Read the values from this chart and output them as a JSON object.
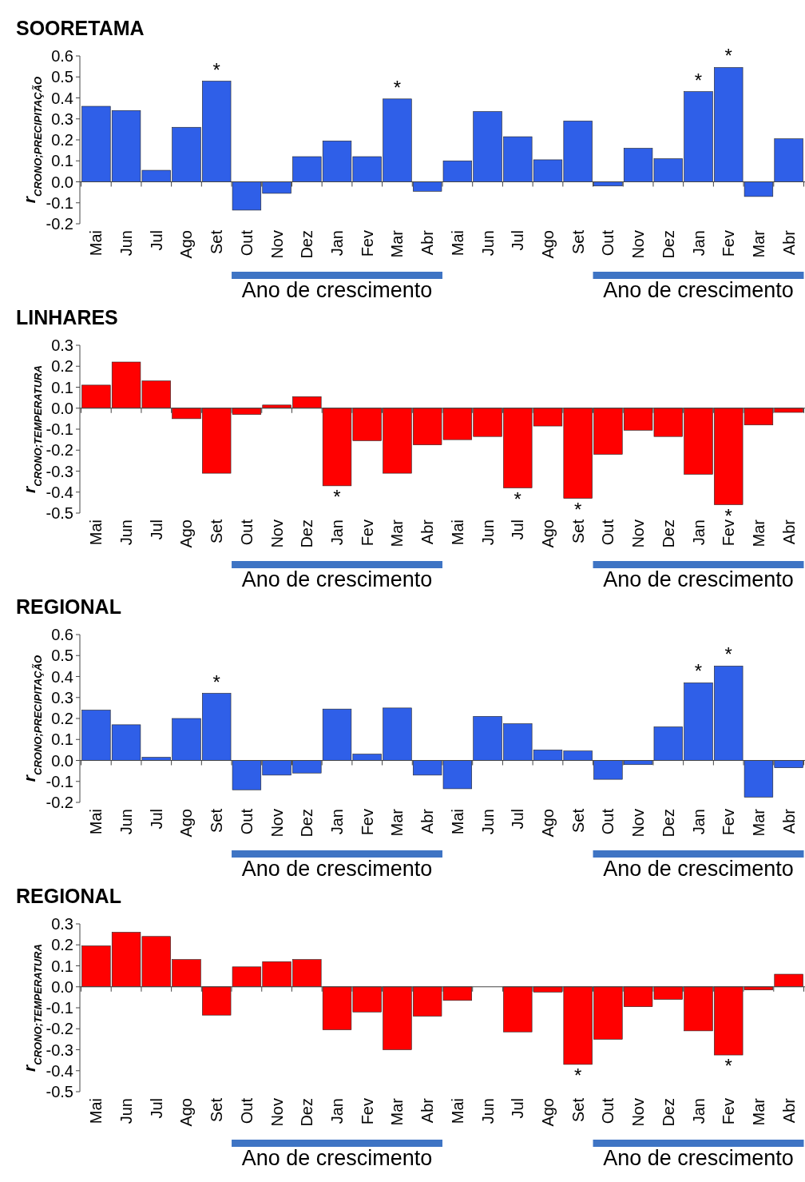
{
  "chart_data": [
    {
      "type": "bar",
      "title": "SOORETAMA",
      "ylabel": "r$_{CRONO;PRECIPITAÇÃO}$",
      "categories": [
        "Mai",
        "Jun",
        "Jul",
        "Ago",
        "Set",
        "Out",
        "Nov",
        "Dez",
        "Jan",
        "Fev",
        "Mar",
        "Abr",
        "Mai",
        "Jun",
        "Jul",
        "Ago",
        "Set",
        "Out",
        "Nov",
        "Dez",
        "Jan",
        "Fev",
        "Mar",
        "Abr"
      ],
      "color": "#2f5fe8",
      "values": [
        0.36,
        0.34,
        0.055,
        0.26,
        0.48,
        -0.135,
        -0.055,
        0.12,
        0.195,
        0.12,
        0.395,
        -0.045,
        0.1,
        0.335,
        0.215,
        0.105,
        0.29,
        -0.02,
        0.16,
        0.11,
        0.43,
        0.545,
        -0.07,
        0.205
      ],
      "value_labels": [
        null,
        null,
        null,
        null,
        "*",
        null,
        null,
        null,
        null,
        null,
        "*",
        null,
        null,
        null,
        null,
        null,
        null,
        null,
        null,
        null,
        "*",
        "*",
        null,
        null
      ],
      "ylim": [
        -0.2,
        0.6
      ],
      "yticks": [
        {
          "value": -0.2,
          "label": "-0.2"
        },
        {
          "value": -0.1,
          "label": "-0.1"
        },
        {
          "value": 0,
          "label": "0.0"
        },
        {
          "value": 0.1,
          "label": "0.1"
        },
        {
          "value": 0.2,
          "label": "0.2"
        },
        {
          "value": 0.3,
          "label": "0.3"
        },
        {
          "value": 0.4,
          "label": "0.4"
        },
        {
          "value": 0.5,
          "label": "0.5"
        },
        {
          "value": 0.6,
          "label": "0.6"
        }
      ],
      "annotations": [
        "Ano de crescimento",
        "Ano de crescimento"
      ]
    },
    {
      "type": "bar",
      "title": "LINHARES",
      "ylabel": "r$_{CRONO;TEMPERATURA}$",
      "categories": [
        "Mai",
        "Jun",
        "Jul",
        "Ago",
        "Set",
        "Out",
        "Nov",
        "Dez",
        "Jan",
        "Fev",
        "Mar",
        "Abr",
        "Mai",
        "Jun",
        "Jul",
        "Ago",
        "Set",
        "Out",
        "Nov",
        "Dez",
        "Jan",
        "Fev",
        "Mar",
        "Abr"
      ],
      "color": "#ff0000",
      "values": [
        0.11,
        0.22,
        0.13,
        -0.05,
        -0.31,
        -0.03,
        0.015,
        0.055,
        -0.37,
        -0.155,
        -0.31,
        -0.175,
        -0.15,
        -0.135,
        -0.38,
        -0.085,
        -0.43,
        -0.22,
        -0.105,
        -0.135,
        -0.315,
        -0.46,
        -0.08,
        -0.02
      ],
      "value_labels": [
        null,
        null,
        null,
        null,
        null,
        null,
        null,
        null,
        "*",
        null,
        null,
        null,
        null,
        null,
        "*",
        null,
        "*",
        null,
        null,
        null,
        null,
        "*",
        null,
        null
      ],
      "ylim": [
        -0.5,
        0.3
      ],
      "yticks": [
        {
          "value": -0.5,
          "label": "-0.5"
        },
        {
          "value": -0.4,
          "label": "-0.4"
        },
        {
          "value": -0.3,
          "label": "-0.3"
        },
        {
          "value": -0.2,
          "label": "-0.2"
        },
        {
          "value": -0.1,
          "label": "-0.1"
        },
        {
          "value": 0,
          "label": "0.0"
        },
        {
          "value": 0.1,
          "label": "0.1"
        },
        {
          "value": 0.2,
          "label": "0.2"
        },
        {
          "value": 0.3,
          "label": "0.3"
        }
      ],
      "annotations": [
        "Ano de crescimento",
        "Ano de crescimento"
      ]
    },
    {
      "type": "bar",
      "title": "REGIONAL",
      "ylabel": "r$_{CRONO;PRECIPITAÇÃO}$",
      "categories": [
        "Mai",
        "Jun",
        "Jul",
        "Ago",
        "Set",
        "Out",
        "Nov",
        "Dez",
        "Jan",
        "Fev",
        "Mar",
        "Abr",
        "Mai",
        "Jun",
        "Jul",
        "Ago",
        "Set",
        "Out",
        "Nov",
        "Dez",
        "Jan",
        "Fev",
        "Mar",
        "Abr"
      ],
      "color": "#2f5fe8",
      "values": [
        0.24,
        0.17,
        0.015,
        0.2,
        0.32,
        -0.14,
        -0.07,
        -0.06,
        0.245,
        0.03,
        0.25,
        -0.07,
        -0.135,
        0.21,
        0.175,
        0.05,
        0.045,
        -0.09,
        -0.02,
        0.16,
        0.37,
        0.45,
        -0.175,
        -0.035
      ],
      "value_labels": [
        null,
        null,
        null,
        null,
        "*",
        null,
        null,
        null,
        null,
        null,
        null,
        null,
        null,
        null,
        null,
        null,
        null,
        null,
        null,
        null,
        "*",
        "*",
        null,
        null
      ],
      "ylim": [
        -0.2,
        0.6
      ],
      "yticks": [
        {
          "value": -0.2,
          "label": "-0.2"
        },
        {
          "value": -0.1,
          "label": "-0.1"
        },
        {
          "value": 0,
          "label": "0.0"
        },
        {
          "value": 0.1,
          "label": "0.1"
        },
        {
          "value": 0.2,
          "label": "0.2"
        },
        {
          "value": 0.3,
          "label": "0.3"
        },
        {
          "value": 0.4,
          "label": "0.4"
        },
        {
          "value": 0.5,
          "label": "0.5"
        },
        {
          "value": 0.6,
          "label": "0.6"
        }
      ],
      "annotations": [
        "Ano de crescimento",
        "Ano de crescimento"
      ]
    },
    {
      "type": "bar",
      "title": "REGIONAL",
      "ylabel": "r$_{CRONO;TEMPERATURA}$",
      "categories": [
        "Mai",
        "Jun",
        "Jul",
        "Ago",
        "Set",
        "Out",
        "Nov",
        "Dez",
        "Jan",
        "Fev",
        "Mar",
        "Abr",
        "Mai",
        "Jun",
        "Jul",
        "Ago",
        "Set",
        "Out",
        "Nov",
        "Dez",
        "Jan",
        "Fev",
        "Mar",
        "Abr"
      ],
      "color": "#ff0000",
      "values": [
        0.195,
        0.26,
        0.24,
        0.13,
        -0.135,
        0.095,
        0.12,
        0.13,
        -0.205,
        -0.12,
        -0.3,
        -0.14,
        -0.065,
        0,
        -0.215,
        -0.025,
        -0.37,
        -0.25,
        -0.095,
        -0.06,
        -0.21,
        -0.325,
        -0.015,
        0.06
      ],
      "value_labels": [
        null,
        null,
        null,
        null,
        null,
        null,
        null,
        null,
        null,
        null,
        null,
        null,
        null,
        null,
        null,
        null,
        "*",
        null,
        null,
        null,
        null,
        "*",
        null,
        null
      ],
      "ylim": [
        -0.5,
        0.3
      ],
      "yticks": [
        {
          "value": -0.5,
          "label": "-0.5"
        },
        {
          "value": -0.4,
          "label": "-0.4"
        },
        {
          "value": -0.3,
          "label": "-0.3"
        },
        {
          "value": -0.2,
          "label": "-0.2"
        },
        {
          "value": -0.1,
          "label": "-0.1"
        },
        {
          "value": 0,
          "label": "0.0"
        },
        {
          "value": 0.1,
          "label": "0.1"
        },
        {
          "value": 0.2,
          "label": "0.2"
        },
        {
          "value": 0.3,
          "label": "0.3"
        }
      ],
      "annotations": [
        "Ano de crescimento",
        "Ano de crescimento"
      ]
    }
  ]
}
